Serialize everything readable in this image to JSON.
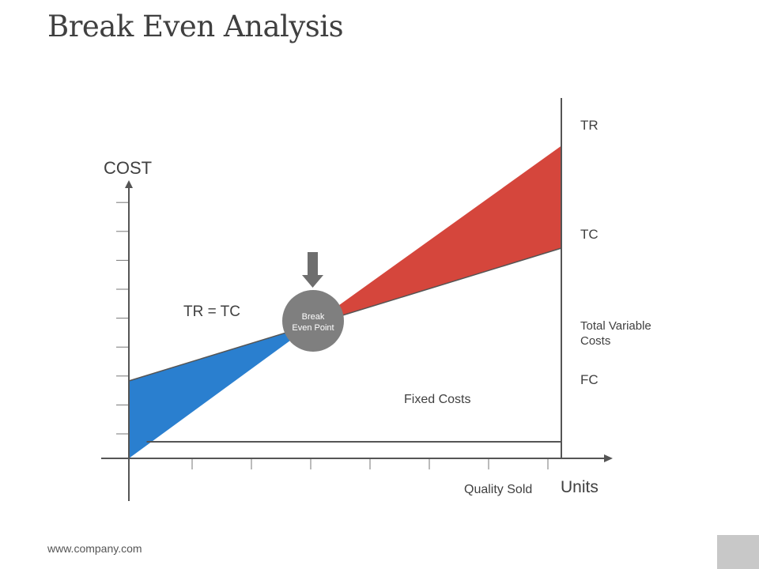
{
  "slide": {
    "title": "Break Even Analysis",
    "footer": "www.company.com"
  },
  "colors": {
    "loss_area": "#2a7fcf",
    "profit_area": "#d5463c",
    "axis": "#555555",
    "line": "#555555",
    "break_even_circle": "#7f7f7f",
    "arrow": "#6e6e6e"
  },
  "chart_data": {
    "type": "line",
    "title": "",
    "ylabel": "COST",
    "xlabel": "Units",
    "x_caption": "Quality Sold",
    "xlim": [
      0,
      7.3
    ],
    "ylim": [
      0,
      10
    ],
    "y_tick_count": 9,
    "x_tick_count": 7,
    "series": [
      {
        "name": "TR",
        "x": [
          0,
          7.3
        ],
        "values": [
          0,
          11.3
        ]
      },
      {
        "name": "TC",
        "x": [
          0,
          7.3
        ],
        "values": [
          2.8,
          7.6
        ]
      },
      {
        "name": "FC",
        "x": [
          0.3,
          7.3
        ],
        "values": [
          0.6,
          0.6
        ]
      }
    ],
    "break_even": {
      "x": 3.1,
      "y": 4.85,
      "label": "Break Even Point"
    },
    "annotations": {
      "tr_eq_tc": "TR = TC",
      "tr": "TR",
      "tc": "TC",
      "total_variable_costs": "Total Variable Costs",
      "fc": "FC",
      "fixed_costs": "Fixed Costs"
    }
  }
}
